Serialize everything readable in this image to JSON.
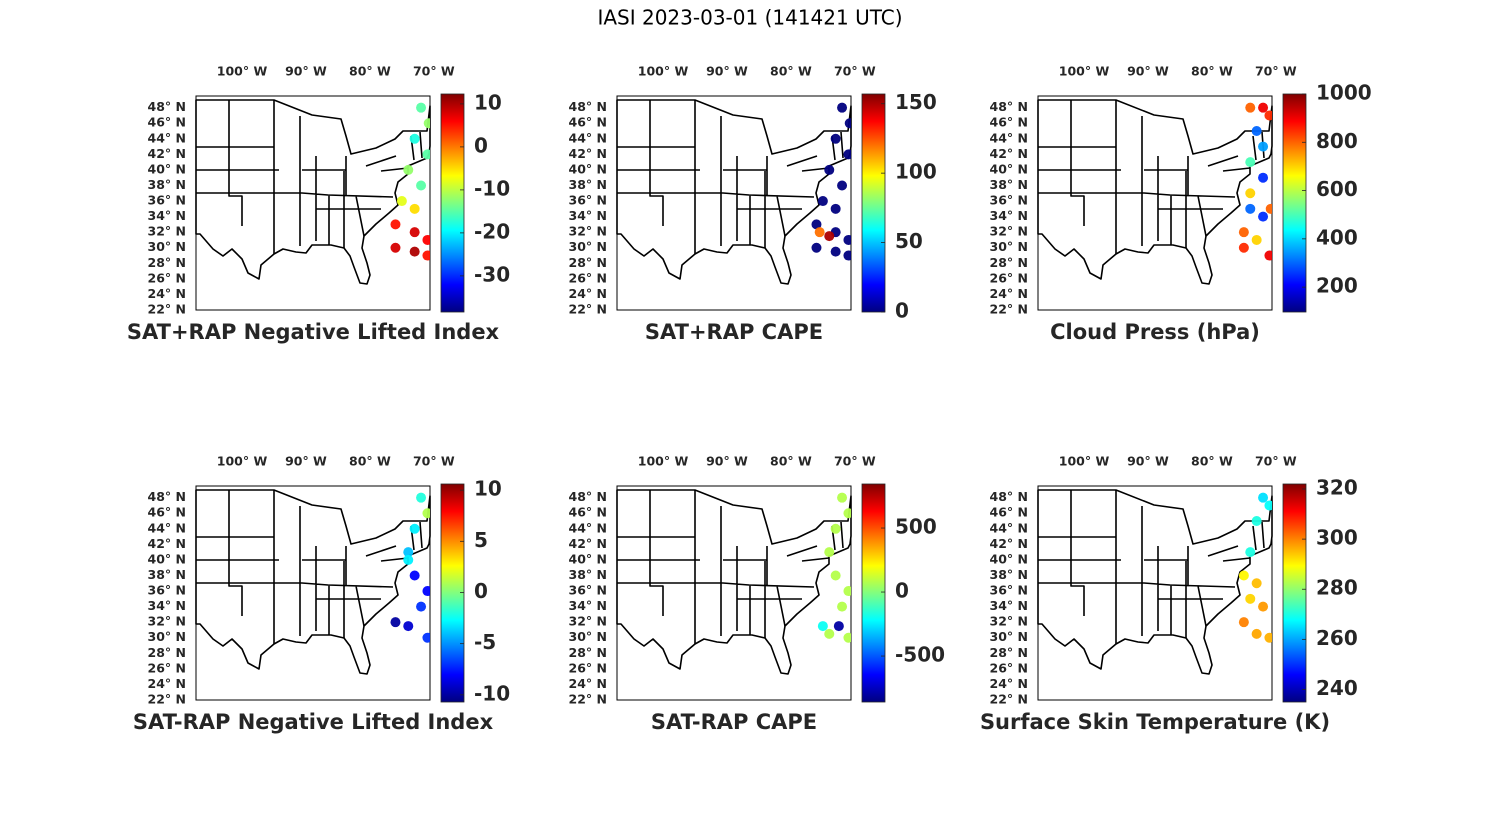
{
  "title": "IASI 2023-03-01 (141421 UTC)",
  "map_axes": {
    "xlim": [
      -107.2,
      -70.6
    ],
    "ylim": [
      22,
      49.5
    ],
    "xticks": [
      {
        "value": -100,
        "label": "100° W"
      },
      {
        "value": -90,
        "label": "90° W"
      },
      {
        "value": -80,
        "label": "80° W"
      },
      {
        "value": -70,
        "label": "70° W"
      }
    ],
    "yticks": [
      {
        "value": 48,
        "label": "48° N"
      },
      {
        "value": 46,
        "label": "46° N"
      },
      {
        "value": 44,
        "label": "44° N"
      },
      {
        "value": 42,
        "label": "42° N"
      },
      {
        "value": 40,
        "label": "40° N"
      },
      {
        "value": 38,
        "label": "38° N"
      },
      {
        "value": 36,
        "label": "36° N"
      },
      {
        "value": 34,
        "label": "34° N"
      },
      {
        "value": 32,
        "label": "32° N"
      },
      {
        "value": 30,
        "label": "30° N"
      },
      {
        "value": 28,
        "label": "28° N"
      },
      {
        "value": 26,
        "label": "26° N"
      },
      {
        "value": 24,
        "label": "24° N"
      },
      {
        "value": 22,
        "label": "22° N"
      }
    ]
  },
  "chart_data": [
    {
      "type": "scatter",
      "title": "SAT+RAP Negative Lifted Index",
      "colormap": "jet",
      "lon": [
        -72,
        -70.8,
        -73,
        -71,
        -74,
        -72,
        -75,
        -73,
        -76,
        -73,
        -71,
        -76,
        -73,
        -71
      ],
      "lat": [
        48,
        46,
        44,
        42,
        40,
        38,
        36,
        35,
        33,
        32,
        31,
        30,
        29.5,
        29
      ],
      "values": [
        -15,
        -12,
        -18,
        -15,
        -12,
        -15,
        -8,
        -5,
        5,
        8,
        6,
        8,
        10,
        5
      ],
      "clim": [
        -38.4,
        12.3
      ],
      "cticks": [
        10,
        0,
        -10,
        -20,
        -30
      ]
    },
    {
      "type": "scatter",
      "title": "SAT+RAP CAPE",
      "colormap": "jet",
      "lon": [
        -72,
        -70.8,
        -73,
        -71,
        -74,
        -72,
        -75,
        -73,
        -76,
        -73,
        -71,
        -76,
        -73,
        -71,
        -75.5,
        -74
      ],
      "lat": [
        48,
        46,
        44,
        42,
        40,
        38,
        36,
        35,
        33,
        32,
        31,
        30,
        29.5,
        29,
        32,
        31.5
      ],
      "values": [
        0,
        0,
        0,
        0,
        0,
        0,
        0,
        0,
        0,
        0,
        0,
        0,
        0,
        0,
        120,
        150
      ],
      "clim": [
        0,
        157
      ],
      "cticks": [
        150,
        100,
        50,
        0
      ]
    },
    {
      "type": "scatter",
      "title": "Cloud Press (hPa)",
      "colormap": "jet",
      "lon": [
        -74,
        -72,
        -71,
        -73,
        -72,
        -74,
        -72,
        -74,
        -74,
        -72,
        -75,
        -73,
        -75,
        -71,
        -70.8
      ],
      "lat": [
        48,
        48,
        47,
        45,
        43,
        41,
        39,
        37,
        35,
        34,
        32,
        31,
        30,
        29,
        35
      ],
      "values": [
        800,
        900,
        850,
        300,
        350,
        500,
        250,
        700,
        300,
        250,
        800,
        700,
        850,
        900,
        800
      ],
      "clim": [
        97,
        1000
      ],
      "cticks": [
        1000,
        800,
        600,
        400,
        200
      ]
    },
    {
      "type": "scatter",
      "title": "SAT-RAP Negative Lifted Index",
      "colormap": "jet",
      "lon": [
        -72,
        -71,
        -73,
        -74,
        -73,
        -71,
        -72,
        -76,
        -74,
        -71,
        -74
      ],
      "lat": [
        48,
        46,
        44,
        41,
        38,
        36,
        34,
        32,
        31.5,
        30,
        40
      ],
      "values": [
        -2,
        1,
        -3,
        -4,
        -8,
        -8,
        -7,
        -10,
        -9,
        -7,
        -3
      ],
      "clim": [
        -10.7,
        10.6
      ],
      "cticks": [
        10,
        5,
        0,
        -5,
        -10
      ]
    },
    {
      "type": "scatter",
      "title": "SAT-RAP CAPE",
      "colormap": "jet",
      "lon": [
        -72,
        -71,
        -73,
        -74,
        -73,
        -71,
        -72,
        -74,
        -71,
        -75,
        -72.5
      ],
      "lat": [
        48,
        46,
        44,
        41,
        38,
        36,
        34,
        30.5,
        30,
        31.5,
        31.5
      ],
      "values": [
        80,
        80,
        80,
        80,
        80,
        80,
        80,
        80,
        80,
        -200,
        -800
      ],
      "clim": [
        -859,
        844
      ],
      "cticks": [
        500,
        0,
        -500
      ]
    },
    {
      "type": "scatter",
      "title": "Surface Skin Temperature (K)",
      "colormap": "jet",
      "lon": [
        -72,
        -71,
        -73,
        -74,
        -75,
        -73,
        -72,
        -75,
        -73,
        -71,
        -74
      ],
      "lat": [
        48,
        47,
        45,
        41,
        38,
        37,
        34,
        32,
        30.5,
        30,
        35
      ],
      "values": [
        265,
        268,
        270,
        270,
        290,
        295,
        298,
        300,
        297,
        296,
        293
      ],
      "clim": [
        235,
        322
      ],
      "cticks": [
        320,
        300,
        280,
        260,
        240
      ]
    }
  ]
}
